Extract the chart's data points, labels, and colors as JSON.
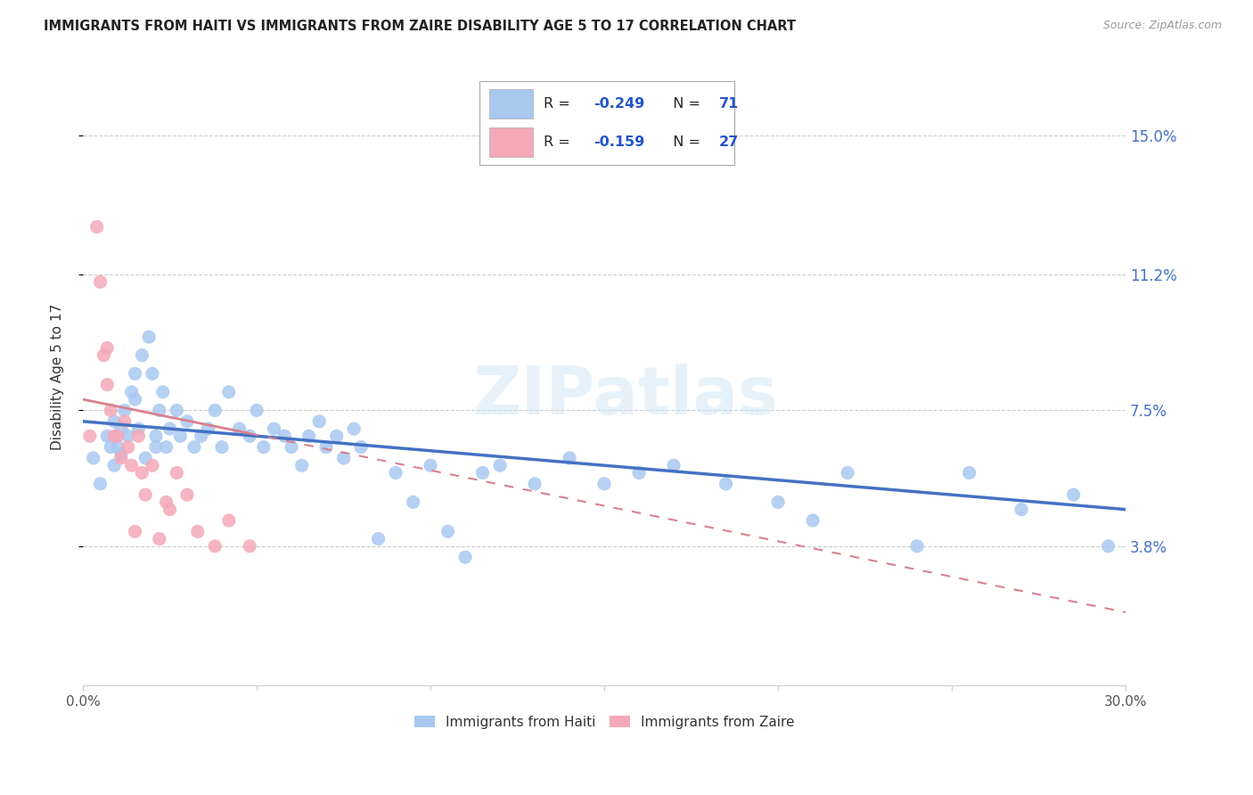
{
  "title": "IMMIGRANTS FROM HAITI VS IMMIGRANTS FROM ZAIRE DISABILITY AGE 5 TO 17 CORRELATION CHART",
  "source": "Source: ZipAtlas.com",
  "ylabel": "Disability Age 5 to 17",
  "legend_label_1": "Immigrants from Haiti",
  "legend_label_2": "Immigrants from Zaire",
  "R1": -0.249,
  "N1": 71,
  "R2": -0.159,
  "N2": 27,
  "xlim": [
    0.0,
    0.3
  ],
  "ylim": [
    0.0,
    0.168
  ],
  "yticks": [
    0.038,
    0.075,
    0.112,
    0.15
  ],
  "ytick_labels": [
    "3.8%",
    "7.5%",
    "11.2%",
    "15.0%"
  ],
  "xticks": [
    0.0,
    0.05,
    0.1,
    0.15,
    0.2,
    0.25,
    0.3
  ],
  "color_haiti": "#a8c8f0",
  "color_zaire": "#f4a8b8",
  "trend_color_haiti": "#4472c4",
  "trend_color_zaire": "#d9808f",
  "watermark": "ZIPatlas",
  "haiti_x": [
    0.003,
    0.005,
    0.007,
    0.008,
    0.009,
    0.009,
    0.01,
    0.011,
    0.011,
    0.012,
    0.013,
    0.014,
    0.015,
    0.015,
    0.016,
    0.017,
    0.018,
    0.019,
    0.02,
    0.021,
    0.021,
    0.022,
    0.023,
    0.024,
    0.025,
    0.027,
    0.028,
    0.03,
    0.032,
    0.034,
    0.036,
    0.038,
    0.04,
    0.042,
    0.045,
    0.048,
    0.05,
    0.052,
    0.055,
    0.058,
    0.06,
    0.063,
    0.065,
    0.068,
    0.07,
    0.073,
    0.075,
    0.078,
    0.08,
    0.085,
    0.09,
    0.095,
    0.1,
    0.105,
    0.11,
    0.115,
    0.12,
    0.13,
    0.14,
    0.15,
    0.16,
    0.17,
    0.185,
    0.2,
    0.21,
    0.22,
    0.24,
    0.255,
    0.27,
    0.285,
    0.295
  ],
  "haiti_y": [
    0.062,
    0.055,
    0.068,
    0.065,
    0.072,
    0.06,
    0.065,
    0.07,
    0.063,
    0.075,
    0.068,
    0.08,
    0.085,
    0.078,
    0.07,
    0.09,
    0.062,
    0.095,
    0.085,
    0.065,
    0.068,
    0.075,
    0.08,
    0.065,
    0.07,
    0.075,
    0.068,
    0.072,
    0.065,
    0.068,
    0.07,
    0.075,
    0.065,
    0.08,
    0.07,
    0.068,
    0.075,
    0.065,
    0.07,
    0.068,
    0.065,
    0.06,
    0.068,
    0.072,
    0.065,
    0.068,
    0.062,
    0.07,
    0.065,
    0.04,
    0.058,
    0.05,
    0.06,
    0.042,
    0.035,
    0.058,
    0.06,
    0.055,
    0.062,
    0.055,
    0.058,
    0.06,
    0.055,
    0.05,
    0.045,
    0.058,
    0.038,
    0.058,
    0.048,
    0.052,
    0.038
  ],
  "zaire_x": [
    0.002,
    0.004,
    0.005,
    0.006,
    0.007,
    0.007,
    0.008,
    0.009,
    0.01,
    0.011,
    0.012,
    0.013,
    0.014,
    0.015,
    0.016,
    0.017,
    0.018,
    0.02,
    0.022,
    0.024,
    0.025,
    0.027,
    0.03,
    0.033,
    0.038,
    0.042,
    0.048
  ],
  "zaire_y": [
    0.068,
    0.125,
    0.11,
    0.09,
    0.082,
    0.092,
    0.075,
    0.068,
    0.068,
    0.062,
    0.072,
    0.065,
    0.06,
    0.042,
    0.068,
    0.058,
    0.052,
    0.06,
    0.04,
    0.05,
    0.048,
    0.058,
    0.052,
    0.042,
    0.038,
    0.045,
    0.038
  ],
  "trend_haiti_x0": 0.0,
  "trend_haiti_y0": 0.072,
  "trend_haiti_x1": 0.3,
  "trend_haiti_y1": 0.048,
  "trend_zaire_x0": 0.0,
  "trend_zaire_y0": 0.078,
  "trend_zaire_x1": 0.3,
  "trend_zaire_y1": 0.02
}
